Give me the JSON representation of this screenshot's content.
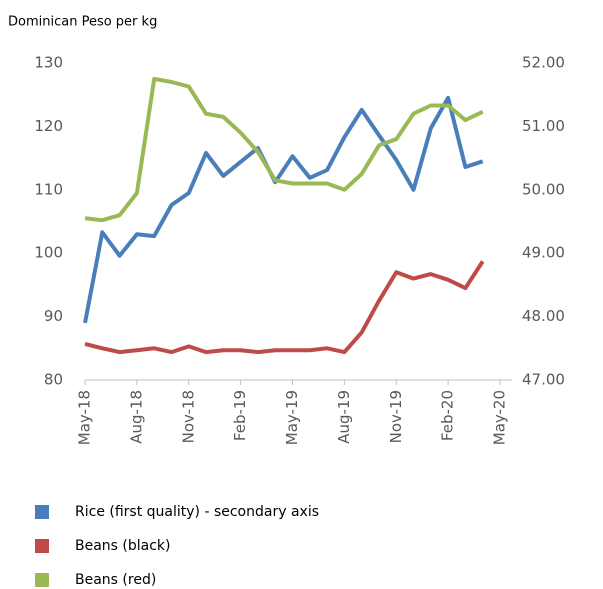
{
  "chart_data": {
    "type": "line",
    "title": "Dominican Peso per kg",
    "categories": [
      "May-18",
      null,
      null,
      "Aug-18",
      null,
      null,
      "Nov-18",
      null,
      null,
      "Feb-19",
      null,
      null,
      "May-19",
      null,
      null,
      "Aug-19",
      null,
      null,
      "Nov-19",
      null,
      null,
      "Feb-20",
      null,
      null,
      "May-20"
    ],
    "series": [
      {
        "name": "Rice (first quality) - secondary axis",
        "color": "#4a7ebb",
        "axis": "y2",
        "values": [
          47.9,
          49.33,
          48.96,
          49.3,
          49.27,
          49.76,
          49.95,
          50.58,
          50.22,
          50.44,
          50.66,
          50.12,
          50.53,
          50.19,
          50.31,
          50.83,
          51.26,
          50.86,
          50.47,
          50.0,
          50.97,
          51.45,
          50.36,
          50.45,
          null
        ]
      },
      {
        "name": "Beans (black)",
        "color": "#be4b48",
        "values": [
          85.7,
          85.0,
          84.4,
          84.7,
          85.0,
          84.4,
          85.3,
          84.4,
          84.7,
          84.7,
          84.4,
          84.7,
          84.7,
          84.7,
          85.0,
          84.4,
          87.5,
          92.5,
          97.0,
          96.0,
          96.7,
          95.8,
          94.5,
          98.7,
          null
        ]
      },
      {
        "name": "Beans (red)",
        "color": "#98b954",
        "values": [
          105.5,
          105.2,
          106.0,
          109.5,
          127.5,
          127.0,
          126.3,
          122.0,
          121.5,
          119.0,
          116.0,
          111.5,
          111.0,
          111.0,
          111.0,
          110.0,
          112.5,
          117.0,
          118.0,
          122.0,
          123.3,
          123.3,
          121.0,
          122.3,
          null
        ]
      }
    ],
    "ylim": [
      80,
      130
    ],
    "yticks": [
      80,
      90,
      100,
      110,
      120,
      130
    ],
    "y2lim": [
      47,
      52
    ],
    "y2ticks": [
      {
        "value": 47,
        "label": "47.00"
      },
      {
        "value": 48,
        "label": "48.00"
      },
      {
        "value": 49,
        "label": "49.00"
      },
      {
        "value": 50,
        "label": "50.00"
      },
      {
        "value": 51,
        "label": "51.00"
      },
      {
        "value": 52,
        "label": "52.00"
      }
    ],
    "grid": false,
    "legend": "bottom"
  }
}
